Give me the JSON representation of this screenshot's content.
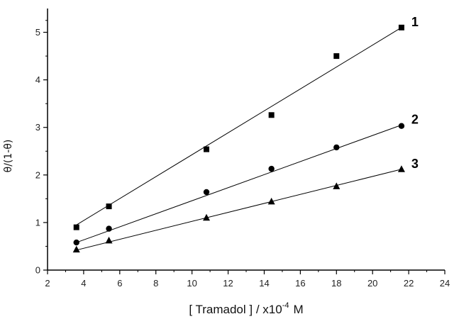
{
  "chart_data": {
    "type": "scatter",
    "title": "",
    "xlabel": "[ Tramadol ] / x10",
    "xlabel_exp": "-4",
    "xlabel_unit": "M",
    "ylabel": "θ/(1-θ)",
    "xlim": [
      2,
      24
    ],
    "ylim": [
      0,
      5.5
    ],
    "xticks": [
      2,
      4,
      6,
      8,
      10,
      12,
      14,
      16,
      18,
      20,
      22,
      24
    ],
    "yticks": [
      0,
      1,
      2,
      3,
      4,
      5
    ],
    "grid": false,
    "legend": "none",
    "series": [
      {
        "name": "1",
        "marker": "square",
        "x": [
          3.6,
          5.4,
          10.8,
          14.4,
          18.0,
          21.6
        ],
        "y": [
          0.9,
          1.34,
          2.54,
          3.26,
          4.5,
          5.1
        ],
        "fit": [
          [
            3.6,
            0.95
          ],
          [
            21.6,
            5.1
          ]
        ]
      },
      {
        "name": "2",
        "marker": "circle",
        "x": [
          3.6,
          5.4,
          10.8,
          14.4,
          18.0,
          21.6
        ],
        "y": [
          0.58,
          0.87,
          1.64,
          2.13,
          2.58,
          3.03
        ],
        "fit": [
          [
            3.6,
            0.58
          ],
          [
            21.6,
            3.05
          ]
        ]
      },
      {
        "name": "3",
        "marker": "triangle",
        "x": [
          3.6,
          5.4,
          10.8,
          14.4,
          18.0,
          21.6
        ],
        "y": [
          0.43,
          0.62,
          1.1,
          1.44,
          1.76,
          2.12
        ],
        "fit": [
          [
            3.6,
            0.42
          ],
          [
            21.6,
            2.12
          ]
        ]
      }
    ]
  }
}
